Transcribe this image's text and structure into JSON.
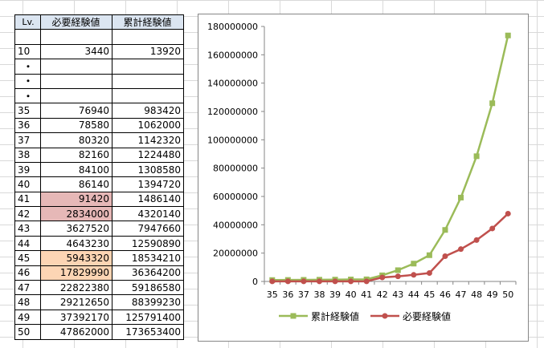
{
  "table": {
    "headers": [
      "Lv.",
      "必要経験値",
      "累計経験値"
    ],
    "rows": [
      {
        "lv": "",
        "req": "",
        "cum": "",
        "hl": ""
      },
      {
        "lv": "10",
        "req": "3440",
        "cum": "13920",
        "hl": ""
      },
      {
        "lv": "・",
        "req": "",
        "cum": "",
        "hl": "",
        "dot": true
      },
      {
        "lv": "・",
        "req": "",
        "cum": "",
        "hl": "",
        "dot": true
      },
      {
        "lv": "・",
        "req": "",
        "cum": "",
        "hl": "",
        "dot": true
      },
      {
        "lv": "35",
        "req": "76940",
        "cum": "983420",
        "hl": ""
      },
      {
        "lv": "36",
        "req": "78580",
        "cum": "1062000",
        "hl": ""
      },
      {
        "lv": "37",
        "req": "80320",
        "cum": "1142320",
        "hl": ""
      },
      {
        "lv": "38",
        "req": "82160",
        "cum": "1224480",
        "hl": ""
      },
      {
        "lv": "39",
        "req": "84100",
        "cum": "1308580",
        "hl": ""
      },
      {
        "lv": "40",
        "req": "86140",
        "cum": "1394720",
        "hl": ""
      },
      {
        "lv": "41",
        "req": "91420",
        "cum": "1486140",
        "hl": "pink"
      },
      {
        "lv": "42",
        "req": "2834000",
        "cum": "4320140",
        "hl": "pink"
      },
      {
        "lv": "43",
        "req": "3627520",
        "cum": "7947660",
        "hl": ""
      },
      {
        "lv": "44",
        "req": "4643230",
        "cum": "12590890",
        "hl": ""
      },
      {
        "lv": "45",
        "req": "5943320",
        "cum": "18534210",
        "hl": "peach"
      },
      {
        "lv": "46",
        "req": "17829990",
        "cum": "36364200",
        "hl": "peach"
      },
      {
        "lv": "47",
        "req": "22822380",
        "cum": "59186580",
        "hl": ""
      },
      {
        "lv": "48",
        "req": "29212650",
        "cum": "88399230",
        "hl": ""
      },
      {
        "lv": "49",
        "req": "37392170",
        "cum": "125791400",
        "hl": ""
      },
      {
        "lv": "50",
        "req": "47862000",
        "cum": "173653400",
        "hl": ""
      }
    ],
    "colors": {
      "header_bg": "#dbe5f1",
      "pink": "#e6b8b7",
      "peach": "#fcd5b4"
    }
  },
  "chart_data": {
    "type": "line",
    "title": "",
    "xlabel": "",
    "ylabel": "",
    "x": [
      "35",
      "36",
      "37",
      "38",
      "39",
      "40",
      "41",
      "42",
      "43",
      "44",
      "45",
      "46",
      "47",
      "48",
      "49",
      "50"
    ],
    "ylim": [
      0,
      180000000
    ],
    "yticks": [
      "0",
      "20000000",
      "40000000",
      "60000000",
      "80000000",
      "100000000",
      "120000000",
      "140000000",
      "160000000",
      "180000000"
    ],
    "grid": false,
    "legend_position": "bottom",
    "series": [
      {
        "name": "累計経験値",
        "color": "#9bbb59",
        "marker": "square",
        "values": [
          983420,
          1062000,
          1142320,
          1224480,
          1308580,
          1394720,
          1486140,
          4320140,
          7947660,
          12590890,
          18534210,
          36364200,
          59186580,
          88399230,
          125791400,
          173653400
        ]
      },
      {
        "name": "必要経験値",
        "color": "#c0504d",
        "marker": "circle",
        "values": [
          76940,
          78580,
          80320,
          82160,
          84100,
          86140,
          91420,
          2834000,
          3627520,
          4643230,
          5943320,
          17829990,
          22822380,
          29212650,
          37392170,
          47862000
        ]
      }
    ]
  }
}
